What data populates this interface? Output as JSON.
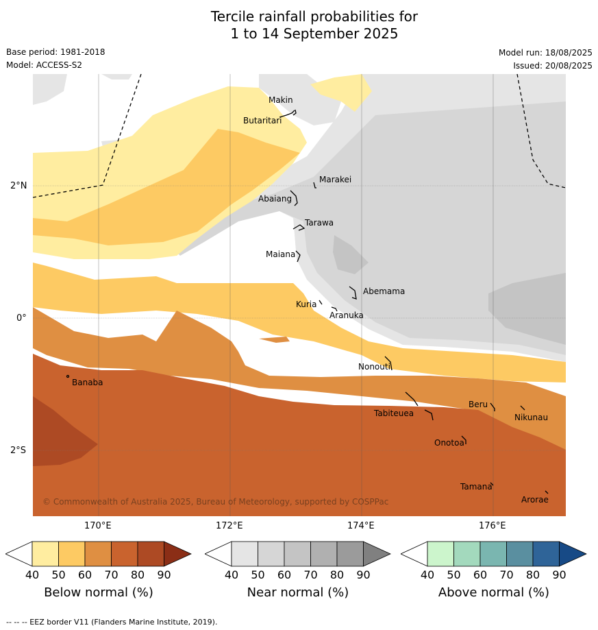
{
  "header": {
    "title_line1": "Tercile rainfall probabilities for",
    "title_line2": "1 to 14 September 2025",
    "base_period": "Base period: 1981-2018",
    "model": "Model: ACCESS-S2",
    "model_run": "Model run: 18/08/2025",
    "issued": "Issued: 20/08/2025"
  },
  "map": {
    "lat_labels": [
      "2°N",
      "0°",
      "2°S"
    ],
    "lon_labels": [
      "170°E",
      "172°E",
      "174°E",
      "176°E"
    ],
    "copyright": "© Commonwealth of Australia 2025, Bureau of Meteorology, supported by COSPPac",
    "places": [
      {
        "name": "Makin",
        "lon": 172.98,
        "lat": 3.1
      },
      {
        "name": "Butaritari",
        "lon": 172.8,
        "lat": 3.0
      },
      {
        "name": "Marakei",
        "lon": 173.28,
        "lat": 2.0
      },
      {
        "name": "Abaiang",
        "lon": 172.98,
        "lat": 1.86
      },
      {
        "name": "Tarawa",
        "lon": 173.0,
        "lat": 1.45
      },
      {
        "name": "Maiana",
        "lon": 173.0,
        "lat": 0.95
      },
      {
        "name": "Abemama",
        "lon": 173.85,
        "lat": 0.45
      },
      {
        "name": "Kuria",
        "lon": 173.4,
        "lat": 0.23
      },
      {
        "name": "Aranuka",
        "lon": 173.6,
        "lat": 0.17
      },
      {
        "name": "Nonouti",
        "lon": 174.4,
        "lat": -0.65
      },
      {
        "name": "Banaba",
        "lon": 169.53,
        "lat": -0.86
      },
      {
        "name": "Tabiteuea",
        "lon": 174.9,
        "lat": -1.3
      },
      {
        "name": "Beru",
        "lon": 175.95,
        "lat": -1.33
      },
      {
        "name": "Nikunau",
        "lon": 176.45,
        "lat": -1.38
      },
      {
        "name": "Onotoa",
        "lon": 175.55,
        "lat": -1.85
      },
      {
        "name": "Tamana",
        "lon": 175.98,
        "lat": -2.5
      },
      {
        "name": "Arorae",
        "lon": 176.82,
        "lat": -2.64
      }
    ]
  },
  "colorbars": [
    {
      "name": "below",
      "label": "Below normal (%)",
      "ticks": [
        "40",
        "50",
        "60",
        "70",
        "80",
        "90"
      ],
      "colors": [
        "#ffffff",
        "#ffeda0",
        "#fdca63",
        "#df8f42",
        "#c9632e",
        "#ad4a24",
        "#8b2e16"
      ]
    },
    {
      "name": "near",
      "label": "Near normal (%)",
      "ticks": [
        "40",
        "50",
        "60",
        "70",
        "80",
        "90"
      ],
      "colors": [
        "#ffffff",
        "#e5e5e5",
        "#d6d6d6",
        "#c4c4c4",
        "#b0b0b0",
        "#9b9b9b",
        "#808080"
      ]
    },
    {
      "name": "above",
      "label": "Above normal (%)",
      "ticks": [
        "40",
        "50",
        "60",
        "70",
        "80",
        "90"
      ],
      "colors": [
        "#ffffff",
        "#ccf5cc",
        "#a3d9bd",
        "#7ab6b0",
        "#5a8fa0",
        "#2f6498",
        "#174a86"
      ]
    }
  ],
  "footer": {
    "legend_text": "--  --  -- EEZ border V11 (Flanders Marine Institute, 2019)."
  }
}
